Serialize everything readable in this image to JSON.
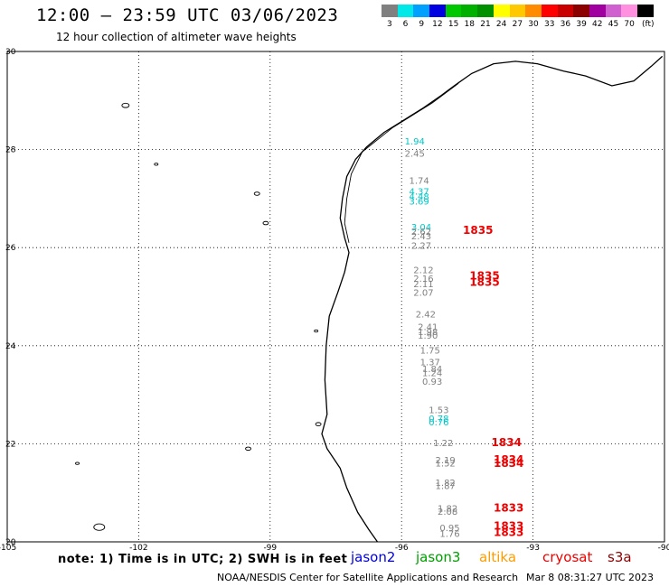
{
  "header": {
    "title": "12:00 – 23:59 UTC 03/06/2023",
    "subtitle": "12 hour collection of altimeter wave heights"
  },
  "legend": {
    "unit": "(ft)",
    "entries": [
      {
        "label": "3",
        "color": "#808080"
      },
      {
        "label": "6",
        "color": "#00e8e8"
      },
      {
        "label": "9",
        "color": "#00a0ff"
      },
      {
        "label": "12",
        "color": "#0000e0"
      },
      {
        "label": "15",
        "color": "#00c800"
      },
      {
        "label": "18",
        "color": "#00b000"
      },
      {
        "label": "21",
        "color": "#009000"
      },
      {
        "label": "24",
        "color": "#ffff00"
      },
      {
        "label": "27",
        "color": "#ffc800"
      },
      {
        "label": "30",
        "color": "#ff8c00"
      },
      {
        "label": "33",
        "color": "#ff0000"
      },
      {
        "label": "36",
        "color": "#c80000"
      },
      {
        "label": "39",
        "color": "#8c0000"
      },
      {
        "label": "42",
        "color": "#a000a0"
      },
      {
        "label": "45",
        "color": "#d060d0"
      },
      {
        "label": "70",
        "color": "#ff90e0"
      },
      {
        "label": "",
        "color": "#000000"
      }
    ]
  },
  "map": {
    "lon_ticks": [
      "-105",
      "-102",
      "-99",
      "-96",
      "-93",
      "-90"
    ],
    "lat_ticks": [
      "30",
      "28",
      "26",
      "24",
      "22",
      "20"
    ],
    "lon_range": [
      -105,
      -90
    ],
    "lat_range": [
      20,
      30
    ]
  },
  "observations": [
    {
      "text": "1.94",
      "color": "#00c8c8",
      "lon": -95.7,
      "lat": 28.1
    },
    {
      "text": "2.45",
      "color": "#808080",
      "lon": -95.7,
      "lat": 27.85
    },
    {
      "text": "1.74",
      "color": "#808080",
      "lon": -95.6,
      "lat": 27.3
    },
    {
      "text": "4.37",
      "color": "#00c8c8",
      "lon": -95.6,
      "lat": 27.08
    },
    {
      "text": "4.48",
      "color": "#00c8c8",
      "lon": -95.6,
      "lat": 26.98
    },
    {
      "text": "3.69",
      "color": "#00c8c8",
      "lon": -95.6,
      "lat": 26.88
    },
    {
      "text": "3.04",
      "color": "#00c8c8",
      "lon": -95.55,
      "lat": 26.35
    },
    {
      "text": "2.62",
      "color": "#808080",
      "lon": -95.55,
      "lat": 26.26
    },
    {
      "text": "2.43",
      "color": "#808080",
      "lon": -95.55,
      "lat": 26.17
    },
    {
      "text": "2.27",
      "color": "#808080",
      "lon": -95.55,
      "lat": 25.98
    },
    {
      "text": "2.12",
      "color": "#808080",
      "lon": -95.5,
      "lat": 25.48
    },
    {
      "text": "2.16",
      "color": "#808080",
      "lon": -95.5,
      "lat": 25.3
    },
    {
      "text": "2.11",
      "color": "#808080",
      "lon": -95.5,
      "lat": 25.19
    },
    {
      "text": "2.07",
      "color": "#808080",
      "lon": -95.5,
      "lat": 25.02
    },
    {
      "text": "2.42",
      "color": "#808080",
      "lon": -95.45,
      "lat": 24.58
    },
    {
      "text": "2.41",
      "color": "#808080",
      "lon": -95.4,
      "lat": 24.32
    },
    {
      "text": "1.98",
      "color": "#808080",
      "lon": -95.4,
      "lat": 24.22
    },
    {
      "text": "1.90",
      "color": "#808080",
      "lon": -95.4,
      "lat": 24.14
    },
    {
      "text": "1.75",
      "color": "#808080",
      "lon": -95.35,
      "lat": 23.84
    },
    {
      "text": "1.37",
      "color": "#808080",
      "lon": -95.35,
      "lat": 23.6
    },
    {
      "text": "1.84",
      "color": "#808080",
      "lon": -95.3,
      "lat": 23.46
    },
    {
      "text": "1.24",
      "color": "#808080",
      "lon": -95.3,
      "lat": 23.38
    },
    {
      "text": "0.93",
      "color": "#808080",
      "lon": -95.3,
      "lat": 23.2
    },
    {
      "text": "1.53",
      "color": "#808080",
      "lon": -95.15,
      "lat": 22.62
    },
    {
      "text": "0.78",
      "color": "#00c8c8",
      "lon": -95.15,
      "lat": 22.45
    },
    {
      "text": "0.76",
      "color": "#00c8c8",
      "lon": -95.15,
      "lat": 22.38
    },
    {
      "text": "1.22",
      "color": "#808080",
      "lon": -95.05,
      "lat": 21.95
    },
    {
      "text": "2.19",
      "color": "#808080",
      "lon": -95.0,
      "lat": 21.6
    },
    {
      "text": "1.52",
      "color": "#808080",
      "lon": -95.0,
      "lat": 21.54
    },
    {
      "text": "1.82",
      "color": "#808080",
      "lon": -95.0,
      "lat": 21.14
    },
    {
      "text": "1.87",
      "color": "#808080",
      "lon": -95.0,
      "lat": 21.08
    },
    {
      "text": "1.82",
      "color": "#808080",
      "lon": -94.95,
      "lat": 20.62
    },
    {
      "text": "2.08",
      "color": "#808080",
      "lon": -94.95,
      "lat": 20.55
    },
    {
      "text": "0.95",
      "color": "#808080",
      "lon": -94.9,
      "lat": 20.22
    },
    {
      "text": "1.76",
      "color": "#808080",
      "lon": -94.9,
      "lat": 20.1
    }
  ],
  "pass_times": [
    {
      "text": "1835",
      "lon": -94.6,
      "lat": 26.28
    },
    {
      "text": "1835",
      "lon": -94.45,
      "lat": 25.35
    },
    {
      "text": "1835",
      "lon": -94.45,
      "lat": 25.22
    },
    {
      "text": "1834",
      "lon": -93.95,
      "lat": 21.95
    },
    {
      "text": "1834",
      "lon": -93.9,
      "lat": 21.6
    },
    {
      "text": "1834",
      "lon": -93.9,
      "lat": 21.53
    },
    {
      "text": "1833",
      "lon": -93.9,
      "lat": 20.62
    },
    {
      "text": "1833",
      "lon": -93.9,
      "lat": 20.25
    },
    {
      "text": "1833",
      "lon": -93.9,
      "lat": 20.12
    }
  ],
  "footer": {
    "note": "note: 1) Time is in UTC; 2) SWH is in feet",
    "satellites": [
      {
        "name": "jason2",
        "color": "#0000e0"
      },
      {
        "name": "jason3",
        "color": "#00a000"
      },
      {
        "name": "altika",
        "color": "#ff9c00"
      },
      {
        "name": "cryosat",
        "color": "#ee0000"
      },
      {
        "name": "s3a",
        "color": "#8c0000"
      }
    ],
    "credit": "NOAA/NESDIS Center for Satellite Applications and Research",
    "timestamp": "Mar  8 08:31:27 UTC 2023"
  }
}
